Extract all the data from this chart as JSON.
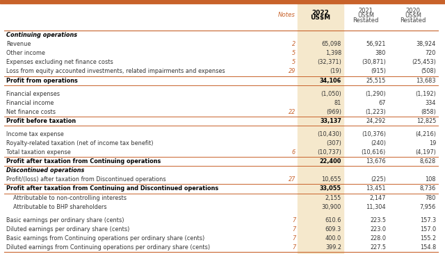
{
  "title_bar_color": "#C8622A",
  "highlight_col_color": "#F5E8CC",
  "orange_text_color": "#C8622A",
  "bold_row_color": "#000000",
  "normal_text_color": "#333333",
  "line_color": "#C8622A",
  "bg_color": "#FFFFFF",
  "rows": [
    {
      "label": "Continuing operations",
      "note": "",
      "v2022": "",
      "v2021": "",
      "v2020": "",
      "bold": true,
      "italic": true,
      "section_header": true
    },
    {
      "label": "Revenue",
      "note": "2",
      "v2022": "65,098",
      "v2021": "56,921",
      "v2020": "38,924",
      "bold": false,
      "note_orange": true
    },
    {
      "label": "Other income",
      "note": "5",
      "v2022": "1,398",
      "v2021": "380",
      "v2020": "720",
      "bold": false,
      "note_orange": true
    },
    {
      "label": "Expenses excluding net finance costs",
      "note": "5",
      "v2022": "(32,371)",
      "v2021": "(30,871)",
      "v2020": "(25,453)",
      "bold": false,
      "note_orange": true
    },
    {
      "label": "Loss from equity accounted investments, related impairments and expenses",
      "note": "29",
      "v2022": "(19)",
      "v2021": "(915)",
      "v2020": "(508)",
      "bold": false,
      "note_orange": true
    },
    {
      "label": "Profit from operations",
      "note": "",
      "v2022": "34,106",
      "v2021": "25,515",
      "v2020": "13,683",
      "bold": true,
      "line_above": true,
      "line_below": true
    },
    {
      "label": "",
      "note": "",
      "v2022": "",
      "v2021": "",
      "v2020": "",
      "spacer": true
    },
    {
      "label": "Financial expenses",
      "note": "",
      "v2022": "(1,050)",
      "v2021": "(1,290)",
      "v2020": "(1,192)",
      "bold": false
    },
    {
      "label": "Financial income",
      "note": "",
      "v2022": "81",
      "v2021": "67",
      "v2020": "334",
      "bold": false
    },
    {
      "label": "Net finance costs",
      "note": "22",
      "v2022": "(969)",
      "v2021": "(1,223)",
      "v2020": "(858)",
      "bold": false,
      "note_orange": true
    },
    {
      "label": "Profit before taxation",
      "note": "",
      "v2022": "33,137",
      "v2021": "24,292",
      "v2020": "12,825",
      "bold": true,
      "line_above": true,
      "line_below": true
    },
    {
      "label": "",
      "note": "",
      "v2022": "",
      "v2021": "",
      "v2020": "",
      "spacer": true
    },
    {
      "label": "Income tax expense",
      "note": "",
      "v2022": "(10,430)",
      "v2021": "(10,376)",
      "v2020": "(4,216)",
      "bold": false
    },
    {
      "label": "Royalty-related taxation (net of income tax benefit)",
      "note": "",
      "v2022": "(307)",
      "v2021": "(240)",
      "v2020": "19",
      "bold": false
    },
    {
      "label": "Total taxation expense",
      "note": "6",
      "v2022": "(10,737)",
      "v2021": "(10,616)",
      "v2020": "(4,197)",
      "bold": false,
      "note_orange": true
    },
    {
      "label": "Profit after taxation from Continuing operations",
      "note": "",
      "v2022": "22,400",
      "v2021": "13,676",
      "v2020": "8,628",
      "bold": true,
      "line_above": true,
      "line_below": true
    },
    {
      "label": "Discontinued operations",
      "note": "",
      "v2022": "",
      "v2021": "",
      "v2020": "",
      "bold": true,
      "italic": true,
      "section_header": true
    },
    {
      "label": "Profit/(loss) after taxation from Discontinued operations",
      "note": "27",
      "v2022": "10,655",
      "v2021": "(225)",
      "v2020": "108",
      "bold": false,
      "note_orange": true
    },
    {
      "label": "Profit after taxation from Continuing and Discontinued operations",
      "note": "",
      "v2022": "33,055",
      "v2021": "13,451",
      "v2020": "8,736",
      "bold": true,
      "line_above": true,
      "line_below": true
    },
    {
      "label": "Attributable to non-controlling interests",
      "note": "",
      "v2022": "2,155",
      "v2021": "2,147",
      "v2020": "780",
      "bold": false,
      "indent": true
    },
    {
      "label": "Attributable to BHP shareholders",
      "note": "",
      "v2022": "30,900",
      "v2021": "11,304",
      "v2020": "7,956",
      "bold": false,
      "indent": true
    },
    {
      "label": "",
      "note": "",
      "v2022": "",
      "v2021": "",
      "v2020": "",
      "spacer": true
    },
    {
      "label": "Basic earnings per ordinary share (cents)",
      "note": "7",
      "v2022": "610.6",
      "v2021": "223.5",
      "v2020": "157.3",
      "bold": false,
      "note_orange": true
    },
    {
      "label": "Diluted earnings per ordinary share (cents)",
      "note": "7",
      "v2022": "609.3",
      "v2021": "223.0",
      "v2020": "157.0",
      "bold": false,
      "note_orange": true
    },
    {
      "label": "Basic earnings from Continuing operations per ordinary share (cents)",
      "note": "7",
      "v2022": "400.0",
      "v2021": "228.0",
      "v2020": "155.2",
      "bold": false,
      "note_orange": true
    },
    {
      "label": "Diluted earnings from Continuing operations per ordinary share (cents)",
      "note": "7",
      "v2022": "399.2",
      "v2021": "227.5",
      "v2020": "154.8",
      "bold": false,
      "note_orange": true
    }
  ]
}
